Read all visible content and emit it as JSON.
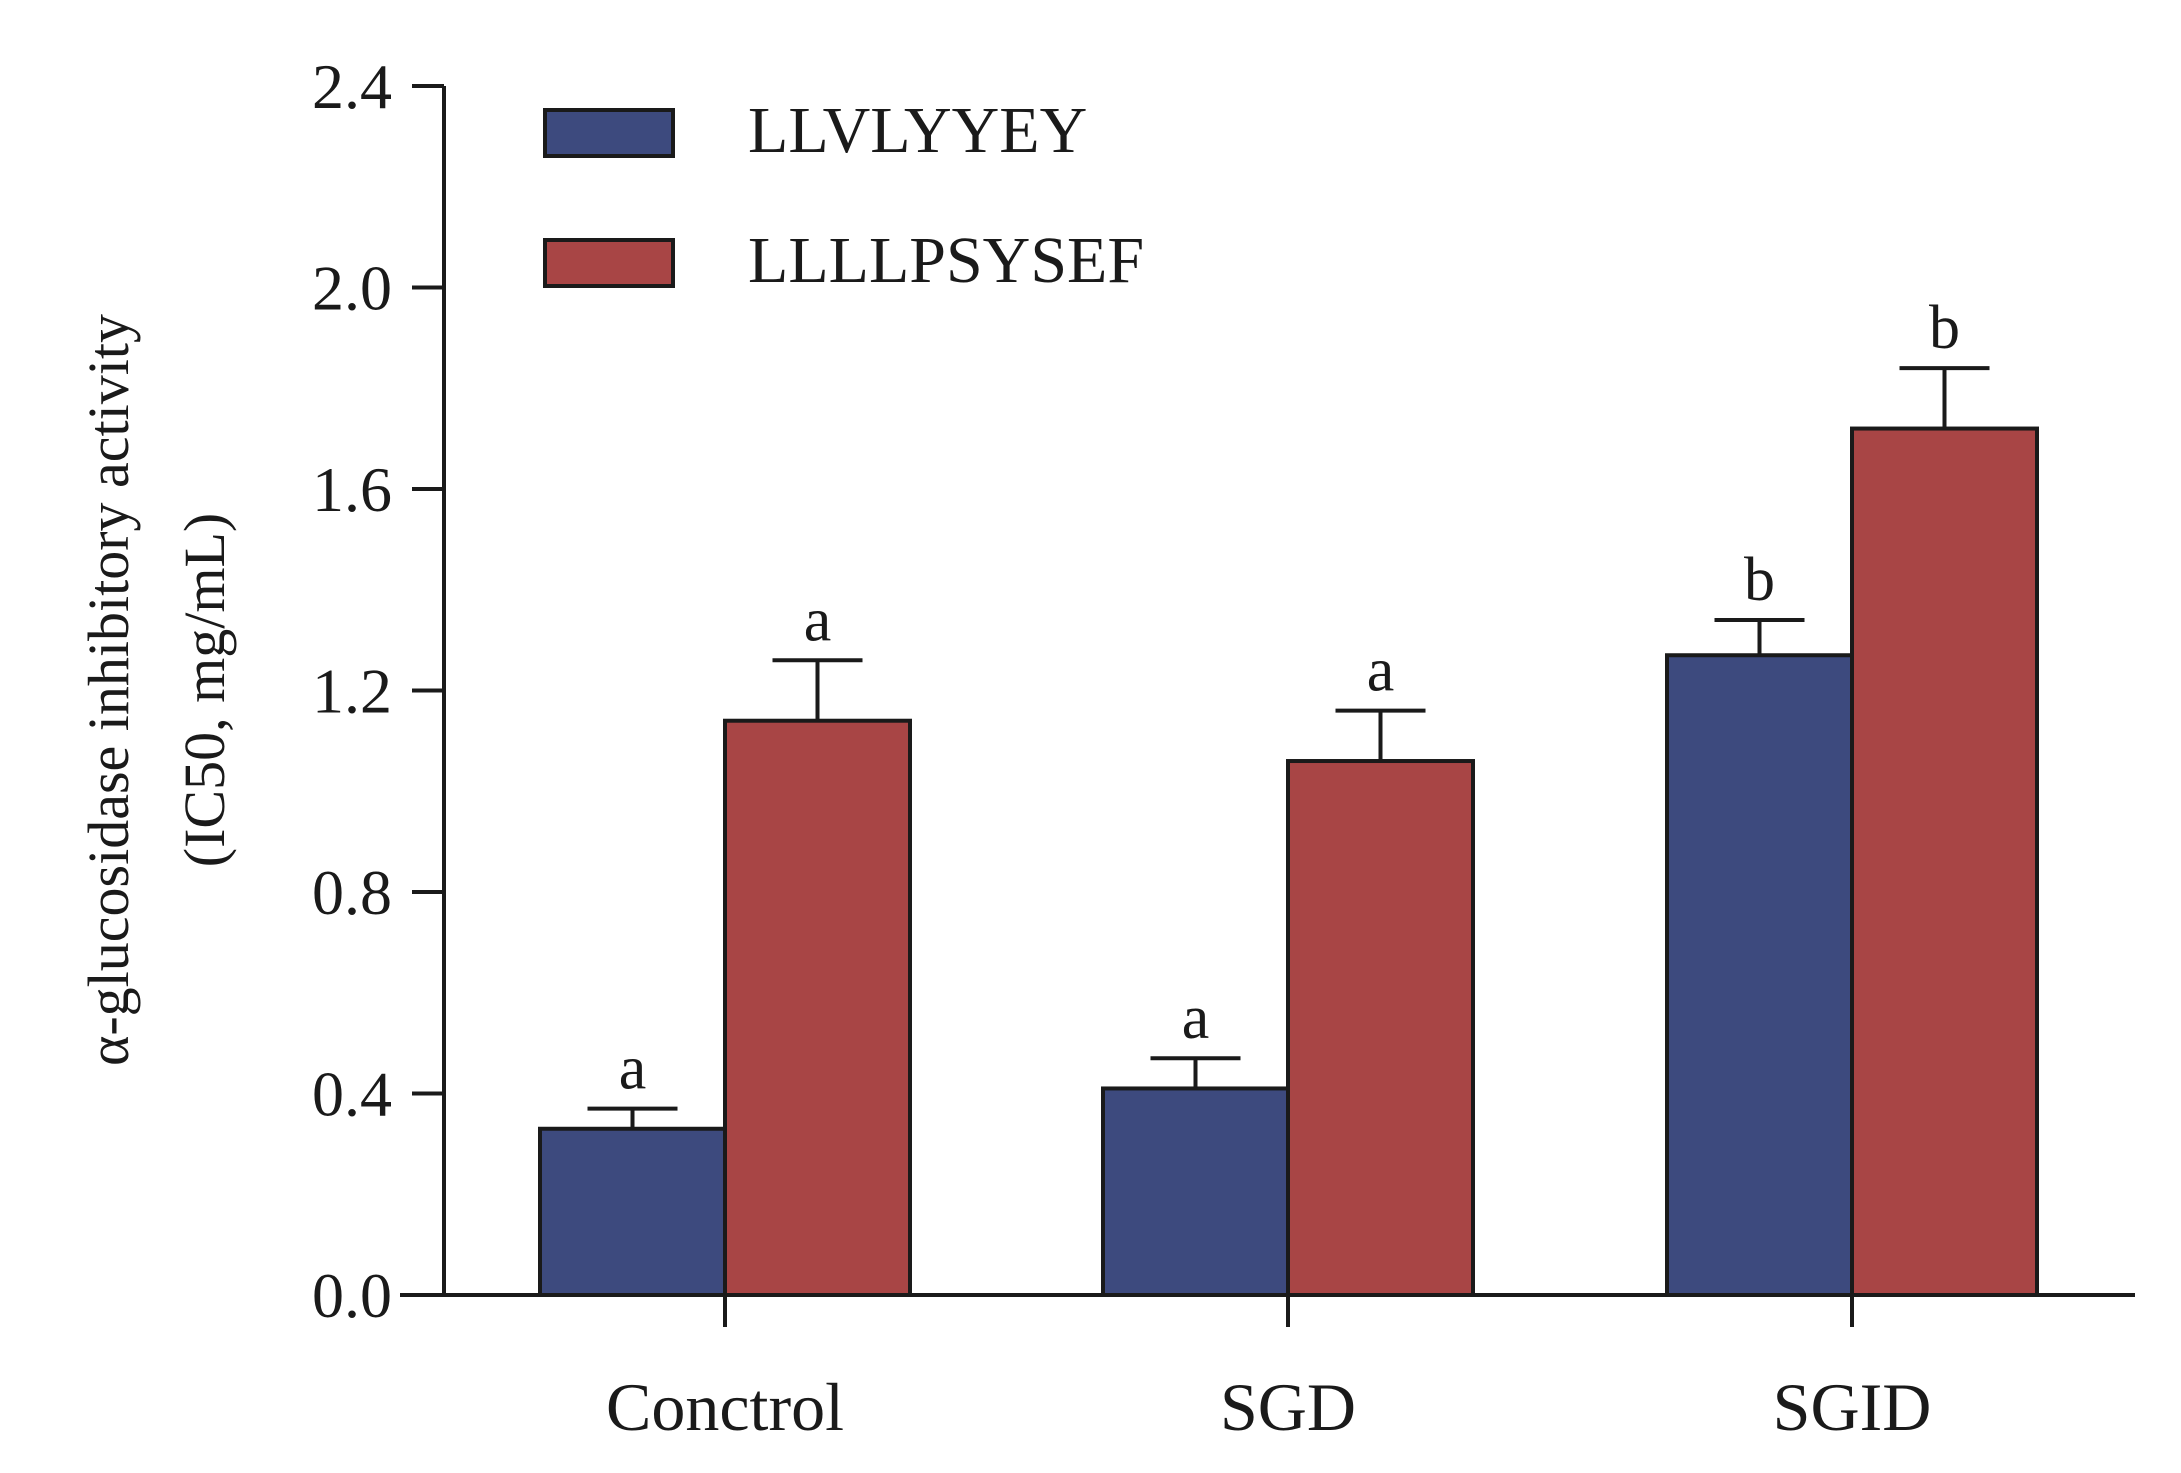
{
  "chart_data": {
    "type": "bar",
    "title": "",
    "xlabel": "",
    "ylabel_line1": "α-glucosidase inhibitory activity",
    "ylabel_line2": "(IC50, mg/mL)",
    "ylim": [
      0,
      2.4
    ],
    "yticks": [
      "0.0",
      "0.4",
      "0.8",
      "1.2",
      "1.6",
      "2.0",
      "2.4"
    ],
    "categories": [
      "Conctrol",
      "SGD",
      "SGID"
    ],
    "legend_position": "top-left",
    "series": [
      {
        "name": "LLVLYYEY",
        "color": "#3d4a7e",
        "values": [
          0.33,
          0.41,
          1.27
        ],
        "errors": [
          0.04,
          0.06,
          0.07
        ],
        "labels": [
          "a",
          "a",
          "b"
        ]
      },
      {
        "name": "LLLLPSYSEF",
        "color": "#a84545",
        "values": [
          1.14,
          1.06,
          1.72
        ],
        "errors": [
          0.12,
          0.1,
          0.12
        ],
        "labels": [
          "a",
          "a",
          "b"
        ]
      }
    ]
  }
}
